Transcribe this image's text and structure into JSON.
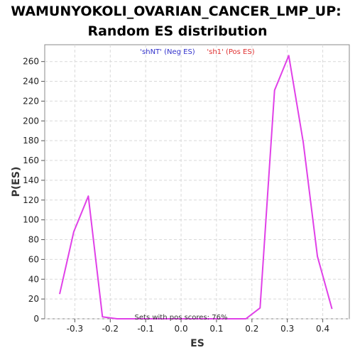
{
  "chart_data": {
    "type": "line",
    "title_line1": "WAMUNYOKOLI_OVARIAN_CANCER_LMP_UP:",
    "title_line2": "Random ES distribution",
    "xlabel": "ES",
    "ylabel": "P(ES)",
    "xlim": [
      -0.385,
      0.475
    ],
    "ylim": [
      0,
      277
    ],
    "xticks": [
      -0.3,
      -0.2,
      -0.1,
      0.0,
      0.1,
      0.2,
      0.3,
      0.4
    ],
    "xtick_labels": [
      "-0.3",
      "-0.2",
      "-0.1",
      "0.0",
      "0.1",
      "0.2",
      "0.3",
      "0.4"
    ],
    "yticks": [
      0,
      20,
      40,
      60,
      80,
      100,
      120,
      140,
      160,
      180,
      200,
      220,
      240,
      260
    ],
    "ytick_labels": [
      "0",
      "20",
      "40",
      "60",
      "80",
      "100",
      "120",
      "140",
      "160",
      "180",
      "200",
      "220",
      "240",
      "260"
    ],
    "grid": true,
    "legend": [
      {
        "label": "'shNT' (Neg ES)",
        "color": "#3333cc"
      },
      {
        "label": "'sh1' (Pos ES)",
        "color": "#e03030"
      }
    ],
    "legend_placement": "top-center",
    "annotation": "Sets with pos scores: 76%",
    "series": [
      {
        "color": "#e040e8",
        "x": [
          -0.343,
          -0.303,
          -0.262,
          -0.222,
          -0.181,
          -0.141,
          -0.1,
          -0.06,
          -0.019,
          0.021,
          0.062,
          0.102,
          0.143,
          0.183,
          0.223,
          0.264,
          0.304,
          0.345,
          0.385,
          0.426
        ],
        "y": [
          25,
          88,
          124,
          2,
          0,
          0,
          0,
          0,
          0,
          0,
          0,
          0,
          0,
          0,
          11,
          231,
          266,
          178,
          63,
          10
        ]
      }
    ]
  }
}
